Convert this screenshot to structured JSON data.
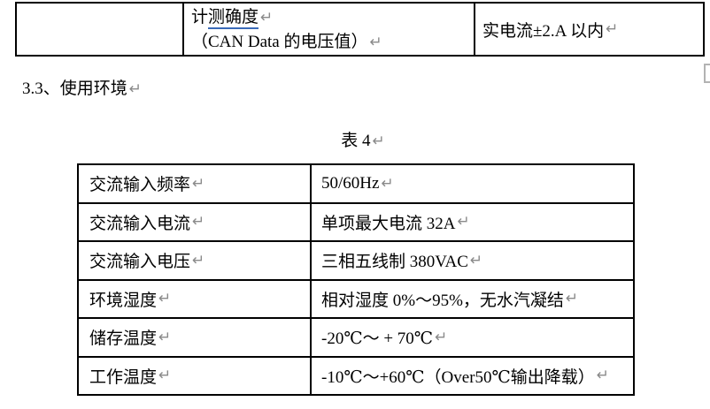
{
  "marks": {
    "pilcrow": "↵"
  },
  "colors": {
    "border": "#000000",
    "grammar_underline": "#3a6ab8",
    "paragraph_mark": "#8a8a8a",
    "background": "#ffffff"
  },
  "top_table": {
    "row": {
      "col1": "",
      "param_line1_plain": "计",
      "param_line1_underlined": "测确度",
      "param_line2": "（CAN Data 的电压值）",
      "value": "实电流±2.A 以内"
    }
  },
  "heading": {
    "text": "3.3、使用环境"
  },
  "caption": {
    "text": "表 4"
  },
  "env_table": {
    "rows": [
      {
        "label": "交流输入频率",
        "value": "50/60Hz"
      },
      {
        "label": "交流输入电流",
        "value": "单项最大电流 32A"
      },
      {
        "label": "交流输入电压",
        "value": "三相五线制 380VAC"
      },
      {
        "label": "环境湿度",
        "value": "相对湿度 0%～95%，无水汽凝结"
      },
      {
        "label": "储存温度",
        "value": "-20℃～ + 70℃"
      },
      {
        "label": "工作温度",
        "value": "-10℃～+60℃（Over50℃输出降载）"
      }
    ]
  }
}
